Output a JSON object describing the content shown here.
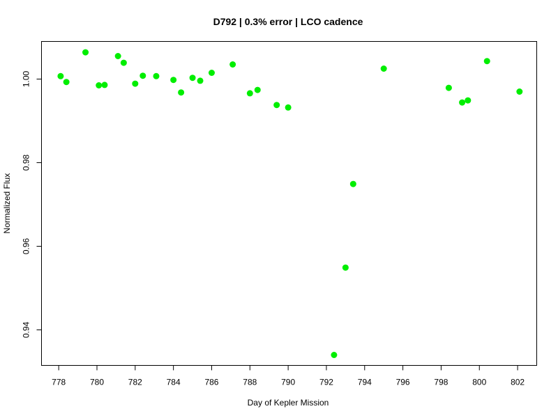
{
  "chart_data": {
    "type": "scatter",
    "title": "D792 | 0.3% error | LCO cadence",
    "xlabel": "Day of Kepler Mission",
    "ylabel": "Normalized Flux",
    "xlim": [
      777.1,
      803.0
    ],
    "ylim": [
      0.9315,
      1.009
    ],
    "xticks": [
      778,
      780,
      782,
      784,
      786,
      788,
      790,
      792,
      794,
      796,
      798,
      800,
      802
    ],
    "yticks": [
      0.94,
      0.96,
      0.98,
      1.0
    ],
    "ytick_labels": [
      "0.94",
      "0.96",
      "0.98",
      "1.00"
    ],
    "marker_color": "#00ee00",
    "grid": false,
    "legend": "none",
    "series": [
      {
        "x": [
          778.1,
          778.4,
          779.4,
          780.1,
          780.4,
          781.1,
          781.4,
          782.0,
          782.4,
          783.1,
          784.0,
          784.4,
          785.0,
          785.4,
          786.0,
          787.1,
          788.0,
          788.4,
          789.4,
          790.0,
          792.4,
          793.0,
          793.4,
          795.0,
          798.4,
          799.1,
          799.4,
          800.4,
          802.1
        ],
        "y": [
          1.0007,
          0.9993,
          1.0064,
          0.9985,
          0.9986,
          1.0055,
          1.0039,
          0.9989,
          1.0008,
          1.0007,
          0.9998,
          0.9968,
          1.0003,
          0.9996,
          1.0015,
          1.0035,
          0.9966,
          0.9974,
          0.9938,
          0.9932,
          0.934,
          0.9549,
          0.9749,
          1.0025,
          0.9979,
          0.9944,
          0.9949,
          1.0043,
          0.997
        ]
      }
    ]
  }
}
